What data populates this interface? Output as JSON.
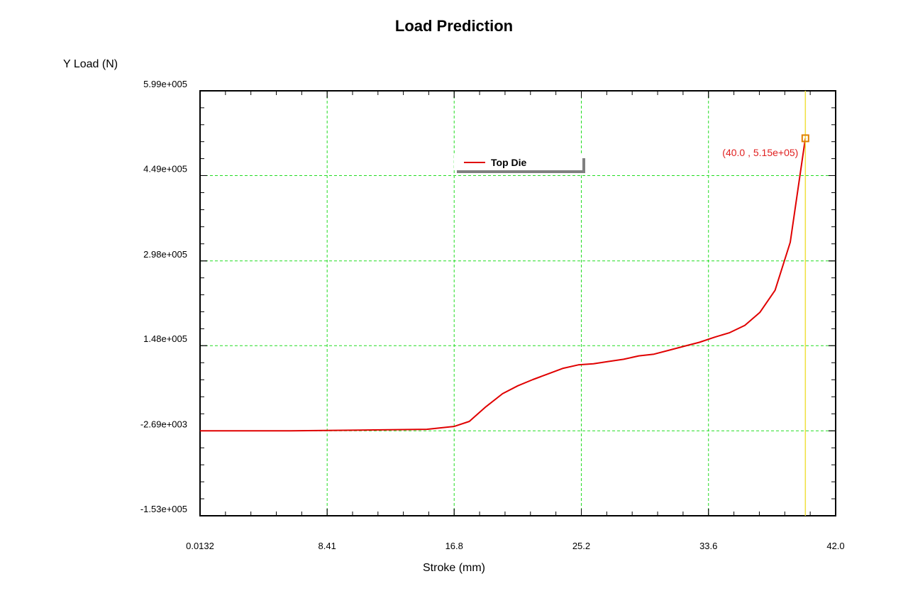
{
  "chart_data": {
    "type": "line",
    "title": "Load Prediction",
    "ylabel": "Y Load (N)",
    "xlabel": "Stroke (mm)",
    "xlim": [
      0.0132,
      42.0
    ],
    "ylim": [
      -153000,
      599000
    ],
    "x_ticks": [
      0.0132,
      8.41,
      16.8,
      25.2,
      33.6,
      42.0
    ],
    "x_tick_labels": [
      "0.0132",
      "8.41",
      "16.8",
      "25.2",
      "33.6",
      "42.0"
    ],
    "y_ticks": [
      599000,
      449000,
      298000,
      148000,
      -2690,
      -153000
    ],
    "y_tick_labels": [
      "5.99e+005",
      "4.49e+005",
      "2.98e+005",
      "1.48e+005",
      "-2.69e+003",
      "-1.53e+005"
    ],
    "grid": true,
    "legend_position": "top-center",
    "series": [
      {
        "name": "Top Die",
        "color": "#e00000",
        "x": [
          0.0132,
          6.0,
          12.0,
          15.0,
          16.8,
          17.8,
          18.9,
          20.0,
          21.0,
          22.0,
          23.0,
          24.0,
          25.0,
          26.0,
          27.0,
          28.0,
          29.0,
          30.0,
          31.0,
          32.0,
          33.0,
          34.0,
          35.0,
          36.0,
          37.0,
          38.0,
          39.0,
          40.0
        ],
        "y": [
          -2690,
          -2690,
          -1000,
          0,
          5000,
          14000,
          40000,
          63000,
          77000,
          88000,
          98000,
          108000,
          114000,
          116000,
          120000,
          124000,
          130000,
          133000,
          140000,
          147000,
          154000,
          163000,
          171000,
          184000,
          207000,
          246000,
          331000,
          515000
        ]
      }
    ],
    "cursor": {
      "x": 40.0,
      "y": 515000,
      "label": "(40.0 , 5.15e+05)",
      "line_color": "#f0e040",
      "marker_color": "#e08000"
    }
  }
}
